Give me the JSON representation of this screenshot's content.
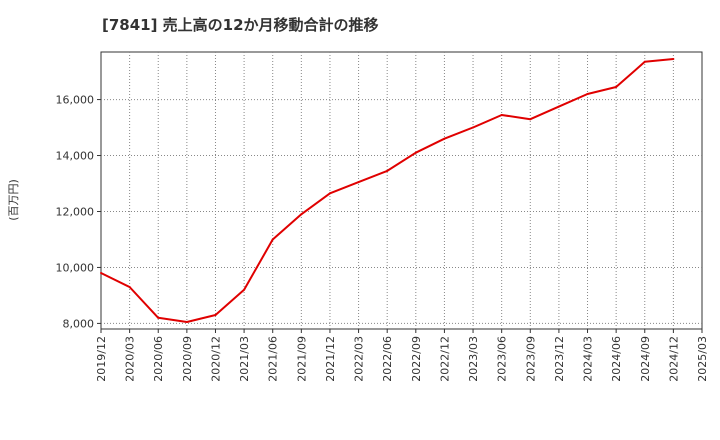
{
  "chart_data": {
    "type": "line",
    "title": "[7841]  売上高の12か月移動合計の推移",
    "xlabel": "",
    "ylabel": "(百万円)",
    "ylim": [
      7800,
      17700
    ],
    "yticks": [
      8000,
      10000,
      12000,
      14000,
      16000
    ],
    "ytick_labels": [
      "8,000",
      "10,000",
      "12,000",
      "14,000",
      "16,000"
    ],
    "xtick_labels": [
      "2019/12",
      "2020/03",
      "2020/06",
      "2020/09",
      "2020/12",
      "2021/03",
      "2021/06",
      "2021/09",
      "2021/12",
      "2022/03",
      "2022/06",
      "2022/09",
      "2022/12",
      "2023/03",
      "2023/06",
      "2023/09",
      "2023/12",
      "2024/03",
      "2024/06",
      "2024/09",
      "2024/12",
      "2025/03"
    ],
    "grid": true,
    "series": [
      {
        "name": "売上高",
        "color": "#e00000",
        "x": [
          "2019/12",
          "2020/03",
          "2020/06",
          "2020/09",
          "2020/12",
          "2021/03",
          "2021/06",
          "2021/09",
          "2021/12",
          "2022/03",
          "2022/06",
          "2022/09",
          "2022/12",
          "2023/03",
          "2023/06",
          "2023/09",
          "2023/12",
          "2024/03",
          "2024/06",
          "2024/09",
          "2024/12"
        ],
        "values": [
          9800,
          9300,
          8200,
          8050,
          8300,
          9200,
          11000,
          11900,
          12650,
          13050,
          13450,
          14100,
          14600,
          15000,
          15450,
          15300,
          15750,
          16200,
          16450,
          17350,
          17450
        ]
      }
    ]
  }
}
